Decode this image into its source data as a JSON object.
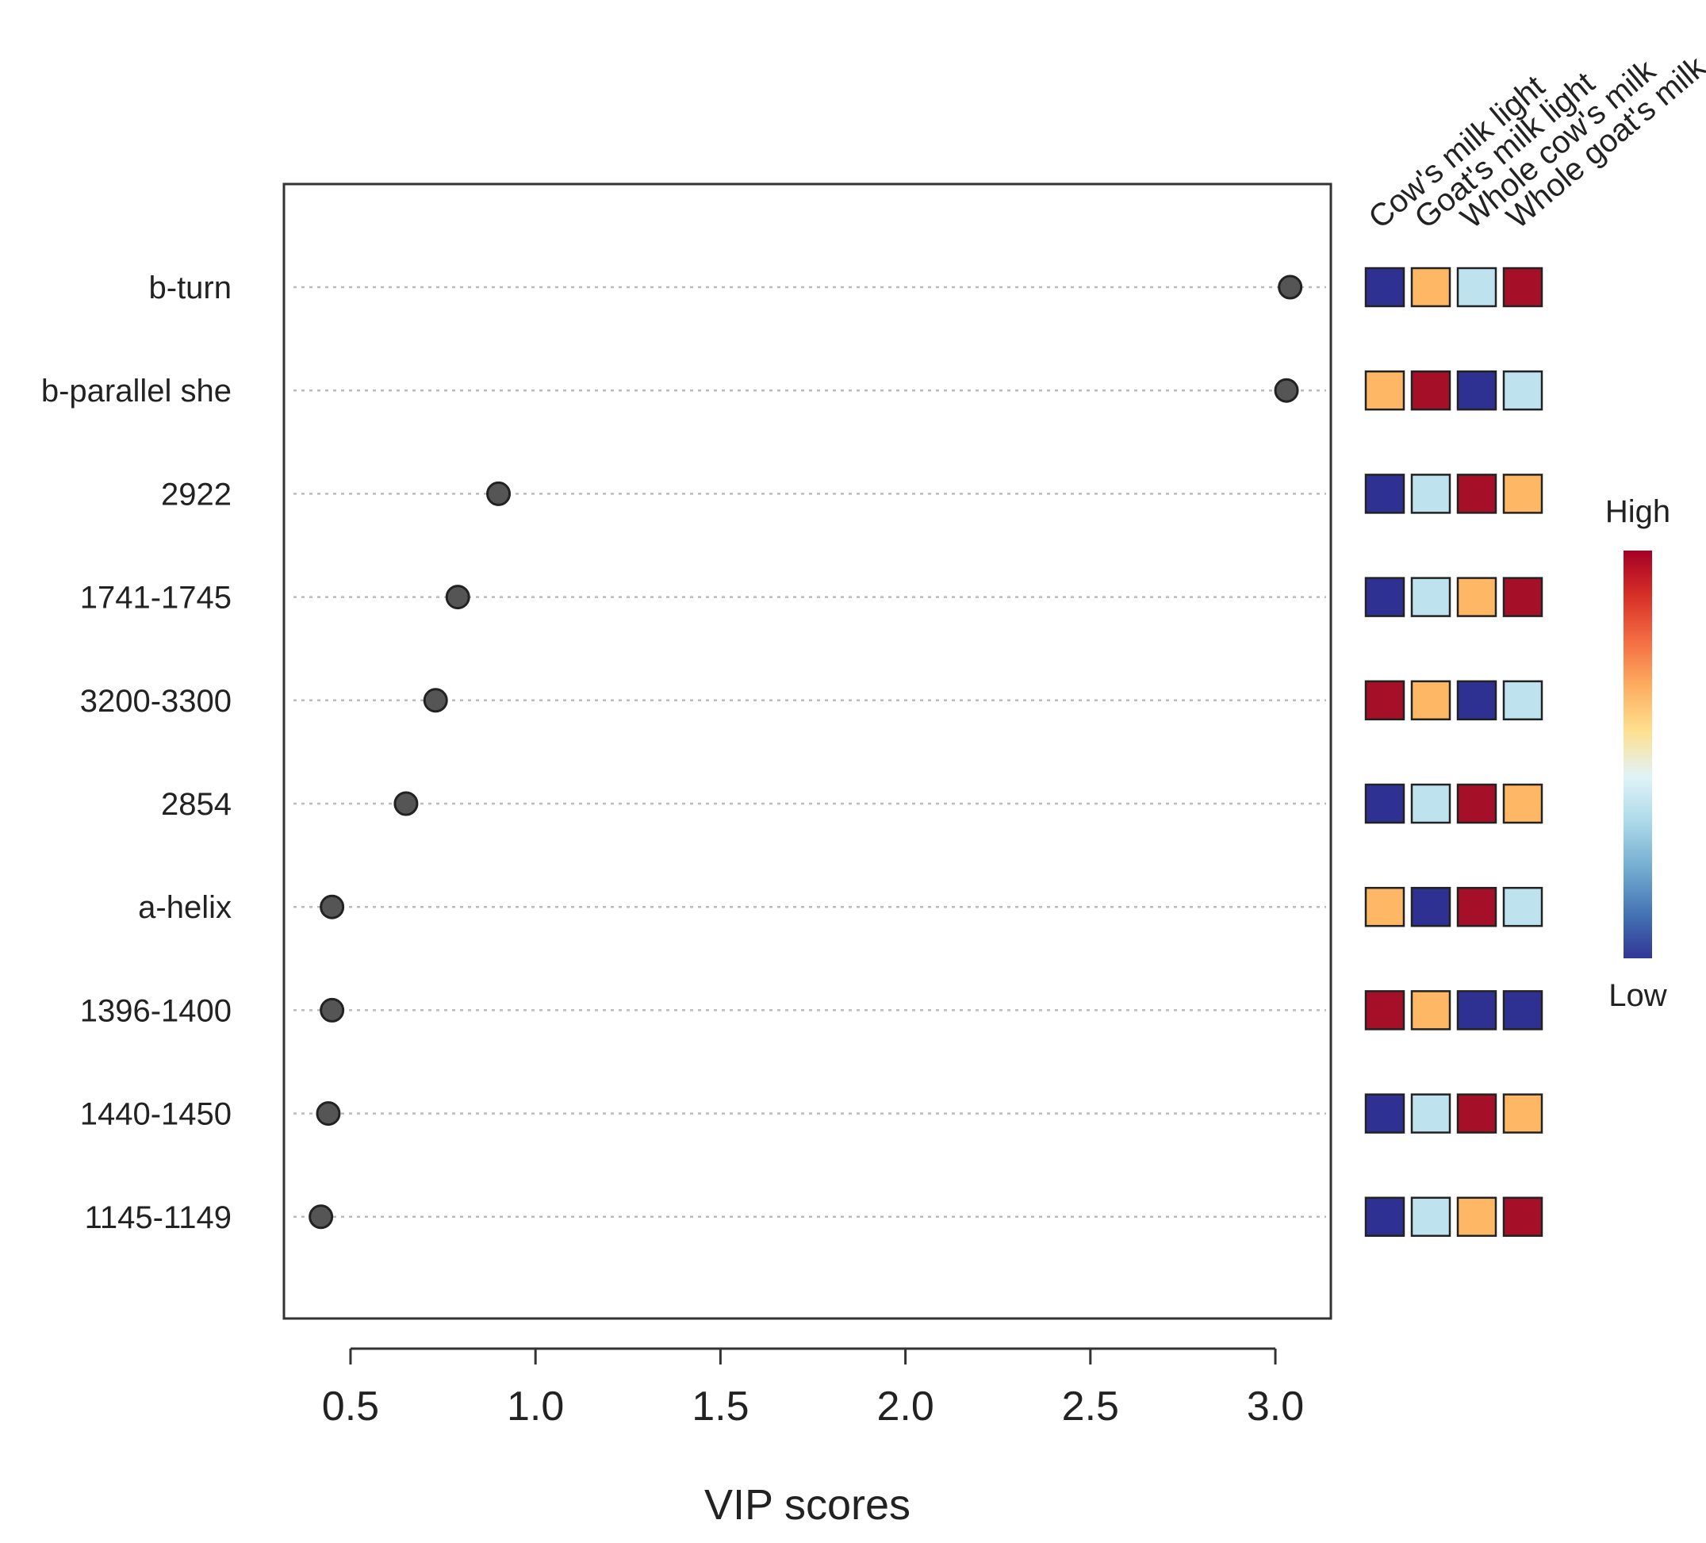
{
  "chart_data": {
    "type": "scatter",
    "subtype": "vip-dot-plot",
    "xlabel": "VIP scores",
    "xlim": [
      0.32,
      3.15
    ],
    "xticks": [
      0.5,
      1.0,
      1.5,
      2.0,
      2.5,
      3.0
    ],
    "xtick_labels": [
      "0.5",
      "1.0",
      "1.5",
      "2.0",
      "2.5",
      "3.0"
    ],
    "grid": "horizontal dotted lines per feature",
    "features": [
      {
        "name": "b-turn",
        "vip": 3.04,
        "levels": [
          "low",
          "mid-high",
          "mid-low",
          "high"
        ]
      },
      {
        "name": "b-parallel she",
        "vip": 3.03,
        "levels": [
          "mid-high",
          "high",
          "low",
          "mid-low"
        ]
      },
      {
        "name": "2922",
        "vip": 0.9,
        "levels": [
          "low",
          "mid-low",
          "high",
          "mid-high"
        ]
      },
      {
        "name": "1741-1745",
        "vip": 0.79,
        "levels": [
          "low",
          "mid-low",
          "mid-high",
          "high"
        ]
      },
      {
        "name": "3200-3300",
        "vip": 0.73,
        "levels": [
          "high",
          "mid-high",
          "low",
          "mid-low"
        ]
      },
      {
        "name": "2854",
        "vip": 0.65,
        "levels": [
          "low",
          "mid-low",
          "high",
          "mid-high"
        ]
      },
      {
        "name": "a-helix",
        "vip": 0.45,
        "levels": [
          "mid-high",
          "low",
          "high",
          "mid-low"
        ]
      },
      {
        "name": "1396-1400",
        "vip": 0.45,
        "levels": [
          "high",
          "mid-high",
          "low",
          "low"
        ]
      },
      {
        "name": "1440-1450",
        "vip": 0.44,
        "levels": [
          "low",
          "mid-low",
          "high",
          "mid-high"
        ]
      },
      {
        "name": "1145-1149",
        "vip": 0.42,
        "levels": [
          "low",
          "mid-low",
          "mid-high",
          "high"
        ]
      }
    ],
    "groups": [
      "Cow's milk light",
      "Goat's milk light",
      "Whole cow's milk",
      "Whole goat's milk"
    ],
    "legend": {
      "high_label": "High",
      "low_label": "Low",
      "placement": "right"
    },
    "level_colors": {
      "low": "#2E3192",
      "mid-low": "#BEE3EE",
      "mid-high": "#FDB765",
      "high": "#A50F27"
    },
    "colorbar_stops": [
      "#313695",
      "#4575B4",
      "#74ADD1",
      "#ABD9E9",
      "#E0F3F8",
      "#FEE090",
      "#FDAE61",
      "#F46D43",
      "#D73027",
      "#A50026"
    ],
    "point_color": "#555555"
  }
}
